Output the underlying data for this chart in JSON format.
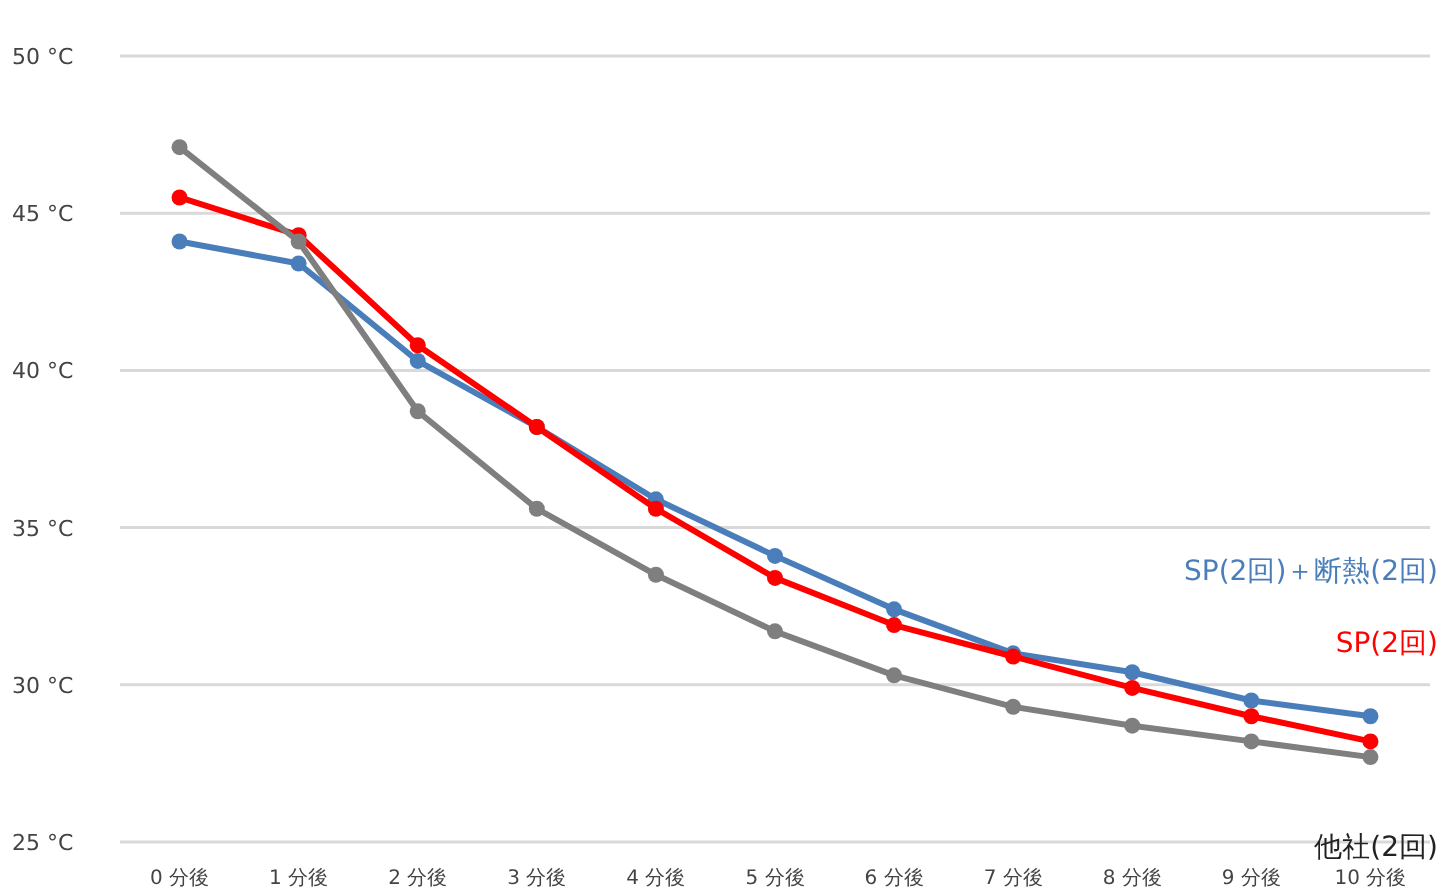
{
  "chart_data": {
    "type": "line",
    "categories": [
      "0 分後",
      "1 分後",
      "2 分後",
      "3 分後",
      "4 分後",
      "5 分後",
      "6 分後",
      "7 分後",
      "8 分後",
      "9 分後",
      "10 分後"
    ],
    "series": [
      {
        "name": "SP(2回)＋断熱(2回)",
        "color": "#4a7ebb",
        "values": [
          44.1,
          43.4,
          40.3,
          38.2,
          35.9,
          34.1,
          32.4,
          31.0,
          30.4,
          29.5,
          29.0
        ]
      },
      {
        "name": "SP(2回)",
        "color": "#ff0000",
        "values": [
          45.5,
          44.3,
          40.8,
          38.2,
          35.6,
          33.4,
          31.9,
          30.9,
          29.9,
          29.0,
          28.2
        ]
      },
      {
        "name": "他社(2回)",
        "color": "#7f7f7f",
        "values": [
          47.1,
          44.1,
          38.7,
          35.6,
          33.5,
          31.7,
          30.3,
          29.3,
          28.7,
          28.2,
          27.7
        ]
      }
    ],
    "ylim": [
      25,
      50
    ],
    "yticks": [
      {
        "value": 25,
        "label": "25 °C"
      },
      {
        "value": 30,
        "label": "30 °C"
      },
      {
        "value": 35,
        "label": "35 °C"
      },
      {
        "value": 40,
        "label": "40 °C"
      },
      {
        "value": 45,
        "label": "45 °C"
      },
      {
        "value": 50,
        "label": "50 °C"
      }
    ],
    "grid": "y",
    "marker": "circle",
    "line_style": "solid"
  }
}
